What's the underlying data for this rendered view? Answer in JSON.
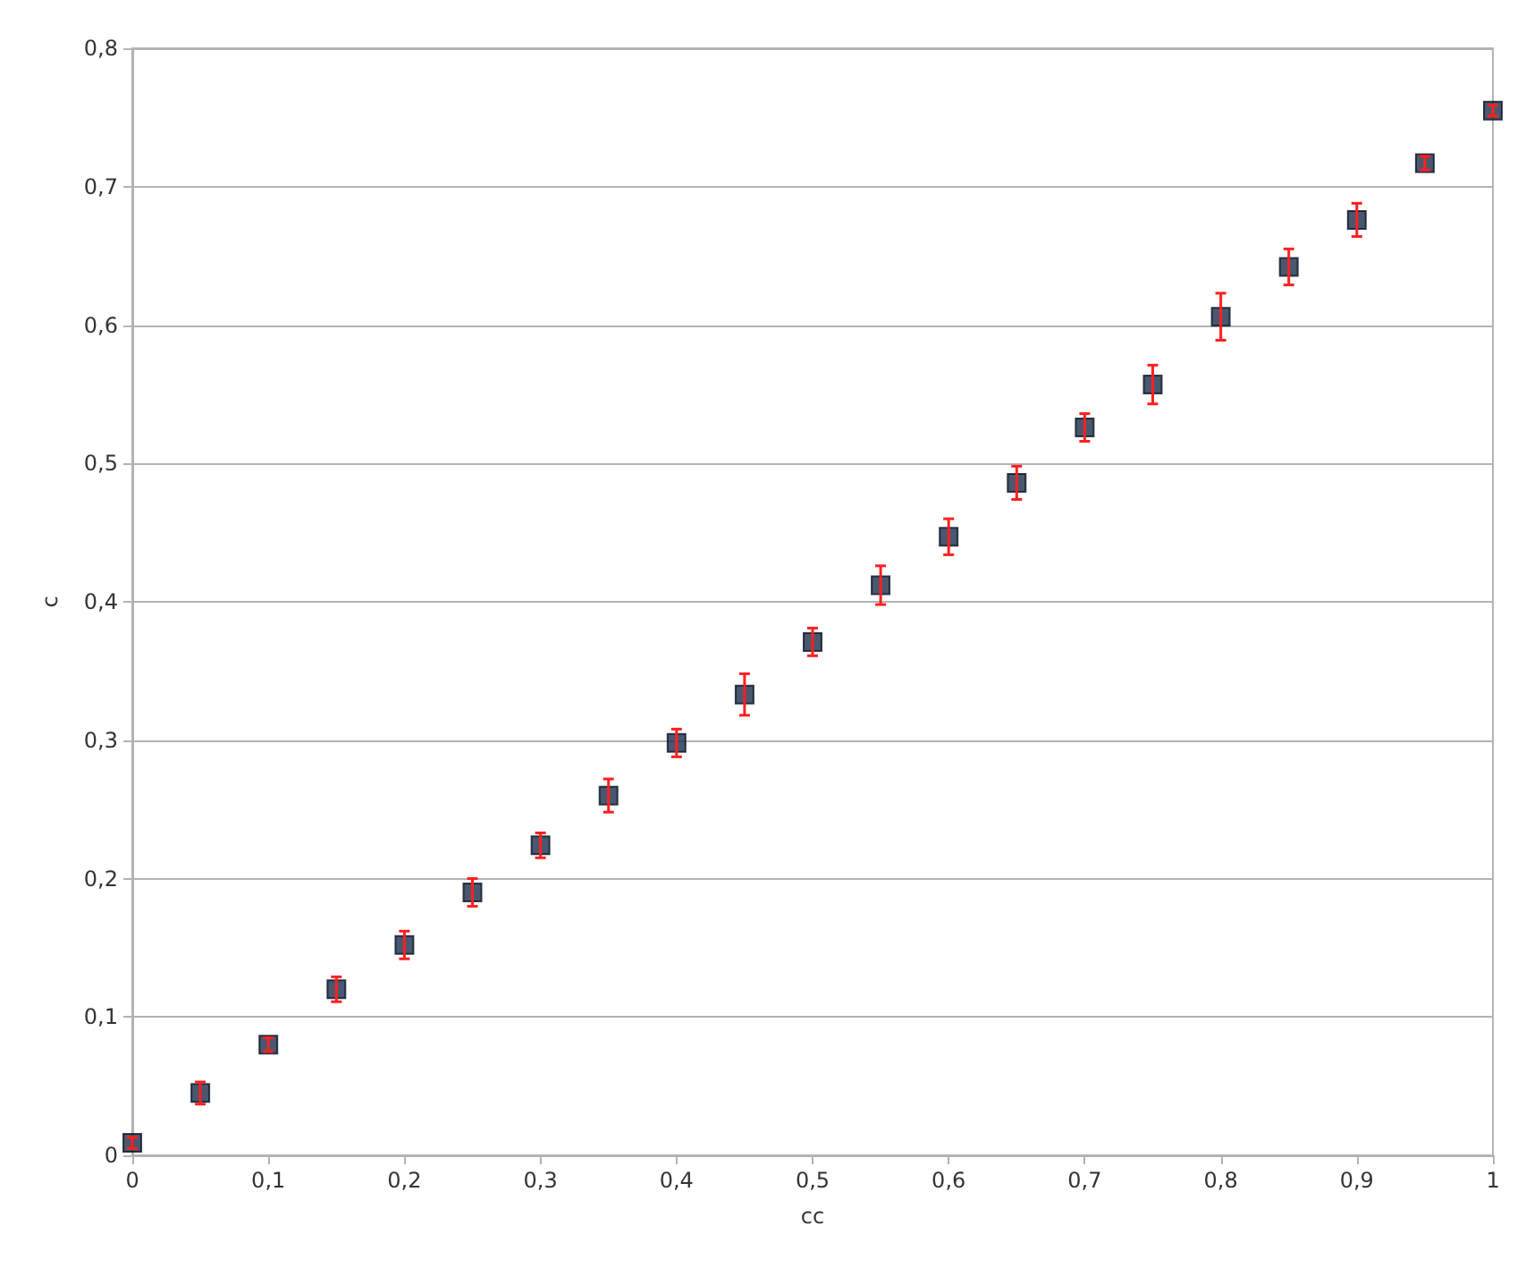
{
  "chart_data": {
    "type": "scatter",
    "xlabel": "cc",
    "ylabel": "c",
    "x": [
      0,
      0.05,
      0.1,
      0.15,
      0.2,
      0.25,
      0.3,
      0.35,
      0.4,
      0.45,
      0.5,
      0.55,
      0.6,
      0.65,
      0.7,
      0.75,
      0.8,
      0.85,
      0.9,
      0.95,
      1
    ],
    "series": [
      {
        "color": "#1c2e4a",
        "values": [
          0.009,
          0.045,
          0.08,
          0.12,
          0.152,
          0.19,
          0.224,
          0.26,
          0.298,
          0.333,
          0.371,
          0.412,
          0.447,
          0.486,
          0.526,
          0.557,
          0.606,
          0.642,
          0.676,
          0.717,
          0.755
        ],
        "errors": [
          0.004,
          0.008,
          0.005,
          0.009,
          0.01,
          0.01,
          0.009,
          0.012,
          0.01,
          0.015,
          0.01,
          0.014,
          0.013,
          0.012,
          0.01,
          0.014,
          0.017,
          0.013,
          0.012,
          0.005,
          0.004
        ]
      }
    ],
    "xlim": [
      0,
      1
    ],
    "xticks": [
      0,
      {
        "value": 0.1,
        "label": "0,1"
      },
      {
        "value": 0.2,
        "label": "0,2"
      },
      {
        "value": 0.3,
        "label": "0,3"
      },
      {
        "value": 0.4,
        "label": "0,4"
      },
      {
        "value": 0.5,
        "label": "0,5"
      },
      {
        "value": 0.6,
        "label": "0,6"
      },
      {
        "value": 0.7,
        "label": "0,7"
      },
      {
        "value": 0.8,
        "label": "0,8"
      },
      {
        "value": 0.9,
        "label": "0,9"
      },
      1
    ],
    "ylim": [
      0,
      0.8
    ],
    "yticks": [
      0,
      {
        "value": 0.1,
        "label": "0,1"
      },
      {
        "value": 0.2,
        "label": "0,2"
      },
      {
        "value": 0.3,
        "label": "0,3"
      },
      {
        "value": 0.4,
        "label": "0,4"
      },
      {
        "value": 0.5,
        "label": "0,5"
      },
      {
        "value": 0.6,
        "label": "0,6"
      },
      {
        "value": 0.7,
        "label": "0,7"
      },
      {
        "value": 0.8,
        "label": "0,8"
      }
    ],
    "grid": "y",
    "marker": "square"
  }
}
